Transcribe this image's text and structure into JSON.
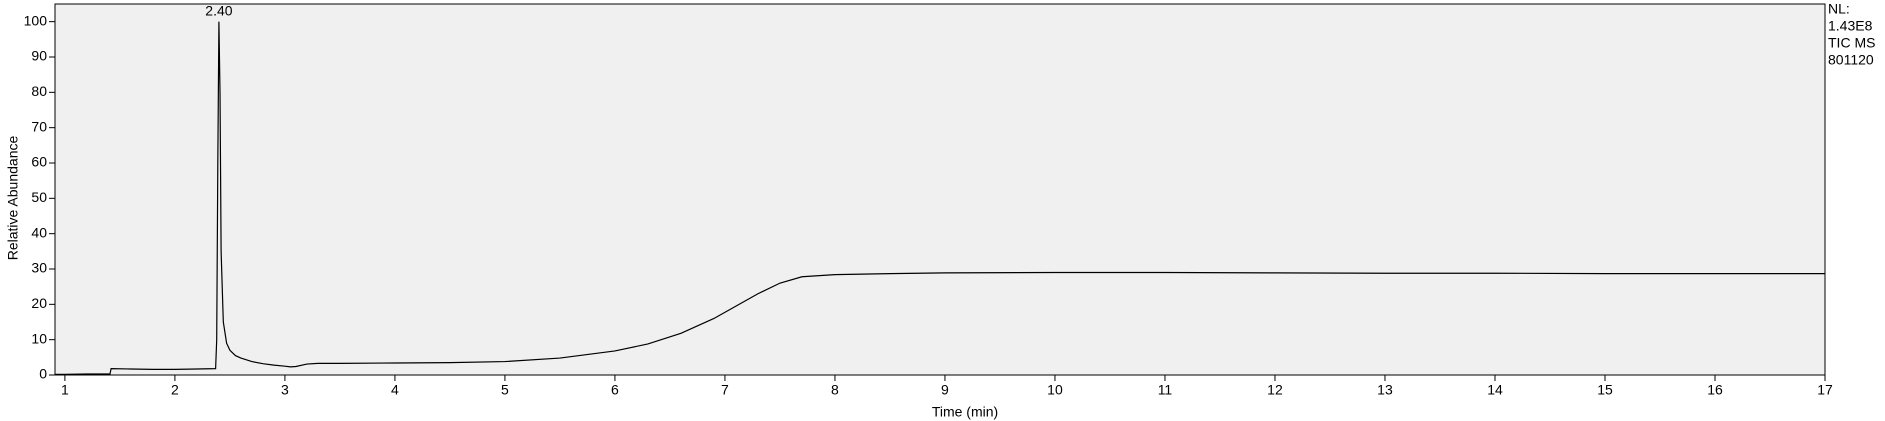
{
  "chart_data": {
    "type": "line",
    "x_label": "Time (min)",
    "y_label": "Relative Abundance",
    "x": [
      0.91,
      1.0,
      1.2,
      1.41,
      1.42,
      1.6,
      1.8,
      2.0,
      2.2,
      2.37,
      2.38,
      2.39,
      2.4,
      2.41,
      2.42,
      2.44,
      2.47,
      2.5,
      2.55,
      2.6,
      2.7,
      2.8,
      2.9,
      3.0,
      3.05,
      3.1,
      3.2,
      3.3,
      3.5,
      4.0,
      4.5,
      5.0,
      5.5,
      6.0,
      6.3,
      6.6,
      6.9,
      7.1,
      7.3,
      7.5,
      7.7,
      8.0,
      8.5,
      9.0,
      10.0,
      11.0,
      12.0,
      13.0,
      14.0,
      15.0,
      16.0,
      17.0
    ],
    "values": [
      0.2,
      0.2,
      0.3,
      0.3,
      1.8,
      1.7,
      1.6,
      1.6,
      1.7,
      1.8,
      10,
      60,
      100,
      80,
      35,
      15,
      9,
      7,
      5.5,
      4.8,
      3.8,
      3.2,
      2.8,
      2.5,
      2.3,
      2.4,
      3.1,
      3.3,
      3.3,
      3.4,
      3.5,
      3.8,
      4.8,
      6.8,
      8.8,
      11.8,
      16,
      19.5,
      23,
      26,
      27.8,
      28.4,
      28.7,
      28.9,
      29,
      29,
      28.9,
      28.8,
      28.8,
      28.7,
      28.7,
      28.7
    ],
    "color": "#000000",
    "xlim": [
      0.91,
      17
    ],
    "xticks": [
      1,
      2,
      3,
      4,
      5,
      6,
      7,
      8,
      9,
      10,
      11,
      12,
      13,
      14,
      15,
      16,
      17
    ],
    "ylim": [
      0,
      105
    ],
    "yticks": [
      0,
      10,
      20,
      30,
      40,
      50,
      60,
      70,
      80,
      90,
      100
    ],
    "annotations": [
      {
        "text": "2.40",
        "x": 2.4,
        "y": 100
      }
    ],
    "info": [
      "NL:",
      "1.43E8",
      "TIC  MS",
      "801120"
    ]
  }
}
